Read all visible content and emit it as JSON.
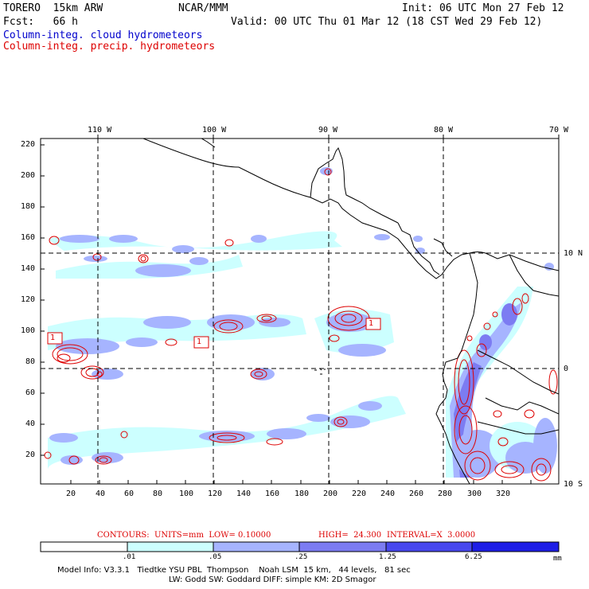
{
  "header": {
    "model": "TORERO  15km ARW",
    "center": "NCAR/MMM",
    "init": "Init: 06 UTC Mon 27 Feb 12",
    "fcst": "Fcst:   66 h",
    "valid": "Valid: 00 UTC Thu 01 Mar 12 (18 CST Wed 29 Feb 12)",
    "legend_cloud": "Column-integ. cloud hydrometeors",
    "legend_precip": "Column-integ. precip. hydrometeors"
  },
  "axes": {
    "top_lon": [
      "110 W",
      "100 W",
      "90 W",
      "80 W",
      "70 W"
    ],
    "right_lat": [
      "10 N",
      "0",
      "10 S"
    ],
    "x_ticks": [
      "20",
      "40",
      "60",
      "80",
      "100",
      "120",
      "140",
      "160",
      "180",
      "200",
      "220",
      "240",
      "260",
      "280",
      "300",
      "320"
    ],
    "y_ticks": [
      "220",
      "200",
      "180",
      "160",
      "140",
      "120",
      "100",
      "80",
      "60",
      "40",
      "20"
    ]
  },
  "markers": [
    "1",
    "1",
    "1"
  ],
  "contours_line": {
    "label": "CONTOURS:  UNITS=mm  LOW= 0.10000",
    "high": "HIGH=  24.300",
    "interval": "INTERVAL=X  3.0000"
  },
  "colorbar": {
    "labels": [
      ".01",
      ".05",
      ".25",
      "1.25",
      "6.25"
    ],
    "units": "mm",
    "colors": [
      "#ffffff",
      "#ccffff",
      "#a6b4ff",
      "#7c7cf2",
      "#4848ee",
      "#1e1ee6"
    ]
  },
  "footer": {
    "line1": "Model Info: V3.3.1   Tiedtke YSU PBL  Thompson    Noah LSM  15 km,   44 levels,   81 sec",
    "line2": "LW: Godd SW: Goddard DIFF: simple KM: 2D Smagor"
  }
}
